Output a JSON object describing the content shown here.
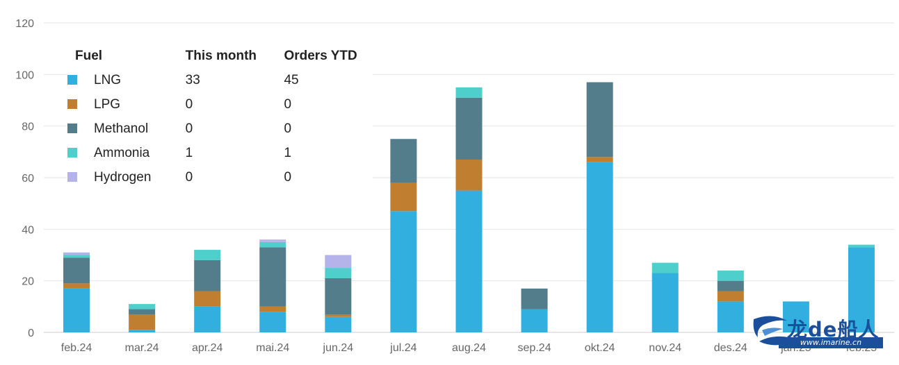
{
  "chart_data": {
    "type": "bar",
    "stacked": true,
    "categories": [
      "feb.24",
      "mar.24",
      "apr.24",
      "mai.24",
      "jun.24",
      "jul.24",
      "aug.24",
      "sep.24",
      "okt.24",
      "nov.24",
      "des.24",
      "jan.25",
      "feb.25"
    ],
    "ylim": [
      0,
      120
    ],
    "yticks": [
      0,
      20,
      40,
      60,
      80,
      100,
      120
    ],
    "grid": true,
    "series": [
      {
        "name": "LNG",
        "color": "#31b0e0",
        "values": [
          17,
          1,
          10,
          8,
          6,
          47,
          55,
          9,
          66,
          23,
          12,
          12,
          33
        ]
      },
      {
        "name": "LPG",
        "color": "#c07f30",
        "values": [
          2,
          6,
          6,
          2,
          1,
          11,
          12,
          0,
          2,
          0,
          4,
          0,
          0
        ]
      },
      {
        "name": "Methanol",
        "color": "#537d8b",
        "values": [
          10,
          2,
          12,
          23,
          14,
          17,
          24,
          8,
          29,
          0,
          4,
          0,
          0
        ]
      },
      {
        "name": "Ammonia",
        "color": "#4ecfcb",
        "values": [
          1,
          2,
          4,
          2,
          4,
          0,
          4,
          0,
          0,
          4,
          4,
          0,
          1
        ]
      },
      {
        "name": "Hydrogen",
        "color": "#b4b4ea",
        "values": [
          1,
          0,
          0,
          1,
          5,
          0,
          0,
          0,
          0,
          0,
          0,
          0,
          0
        ]
      }
    ],
    "legend": {
      "placement": "top-left",
      "headers": {
        "fuel": "Fuel",
        "this_month": "This month",
        "orders_ytd": "Orders YTD"
      },
      "rows": [
        {
          "fuel": "LNG",
          "this_month": "33",
          "orders_ytd": "45"
        },
        {
          "fuel": "LPG",
          "this_month": "0",
          "orders_ytd": "0"
        },
        {
          "fuel": "Methanol",
          "this_month": "0",
          "orders_ytd": "0"
        },
        {
          "fuel": "Ammonia",
          "this_month": "1",
          "orders_ytd": "1"
        },
        {
          "fuel": "Hydrogen",
          "this_month": "0",
          "orders_ytd": "0"
        }
      ]
    }
  },
  "watermark": {
    "brand": "龙de船人",
    "url": "www.imarine.cn"
  }
}
